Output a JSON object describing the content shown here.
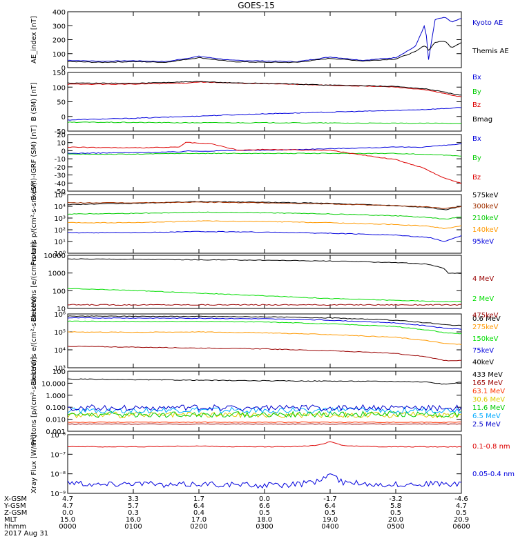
{
  "title": "GOES-15",
  "footer": {
    "rows": [
      {
        "label": "X-GSM",
        "values": [
          "4.7",
          "3.3",
          "1.7",
          "0.0",
          "-1.7",
          "-3.2",
          "-4.6"
        ]
      },
      {
        "label": "Y-GSM",
        "values": [
          "4.7",
          "5.7",
          "6.4",
          "6.6",
          "6.4",
          "5.8",
          "4.7"
        ]
      },
      {
        "label": "Z-GSM",
        "values": [
          "0.0",
          "0.3",
          "0.4",
          "0.5",
          "0.5",
          "0.5",
          "0.5"
        ]
      },
      {
        "label": "MLT",
        "values": [
          "15.0",
          "16.0",
          "17.0",
          "18.0",
          "19.0",
          "20.0",
          "20.9"
        ]
      },
      {
        "label": "hhmm",
        "values": [
          "0000",
          "0100",
          "0200",
          "0300",
          "0400",
          "0500",
          "0600"
        ]
      }
    ],
    "date": "2017 Aug 31"
  },
  "chart_data": [
    {
      "type": "line",
      "ylabel": "AE_index [nT]",
      "ylim": [
        0,
        420
      ],
      "scale": "linear",
      "yticks": [
        "0",
        "100",
        "200",
        "300",
        "400"
      ],
      "x": [
        0,
        0.5,
        1,
        1.5,
        2,
        2.5,
        3,
        3.5,
        4,
        4.5,
        5,
        5.3,
        5.45,
        5.5,
        5.6,
        5.75,
        5.85,
        6
      ],
      "series": [
        {
          "name": "Kyoto AE",
          "color": "#0000cc",
          "values": [
            55,
            48,
            52,
            45,
            85,
            55,
            50,
            45,
            80,
            55,
            75,
            160,
            330,
            60,
            360,
            380,
            340,
            370
          ]
        },
        {
          "name": "Themis AE",
          "color": "#000000",
          "values": [
            45,
            40,
            45,
            40,
            75,
            45,
            40,
            40,
            70,
            50,
            65,
            120,
            170,
            130,
            190,
            200,
            150,
            190
          ]
        }
      ]
    },
    {
      "type": "line",
      "ylabel": "B (SM) [nT]",
      "ylim": [
        -60,
        150
      ],
      "scale": "linear",
      "yticks": [
        "-50",
        "0",
        "50",
        "100",
        "150"
      ],
      "x": [
        0,
        1,
        1.8,
        2,
        2.5,
        3,
        4,
        5,
        5.5,
        6
      ],
      "series": [
        {
          "name": "Bx",
          "color": "#0000dd",
          "values": [
            -20,
            -14,
            -8,
            -6,
            -2,
            2,
            8,
            14,
            18,
            24
          ]
        },
        {
          "name": "By",
          "color": "#00cc00",
          "values": [
            -28,
            -29,
            -30,
            -30,
            -30,
            -30,
            -31,
            -32,
            -32,
            -32
          ]
        },
        {
          "name": "Bz",
          "color": "#dd0000",
          "values": [
            108,
            108,
            112,
            116,
            112,
            110,
            104,
            98,
            86,
            62
          ]
        },
        {
          "name": "Bmag",
          "color": "#000000",
          "values": [
            112,
            111,
            116,
            117,
            113,
            111,
            105,
            100,
            90,
            68
          ]
        }
      ]
    },
    {
      "type": "line",
      "ylabel": "B (SM)-IGRF (SM) [nT]",
      "ylim": [
        -50,
        22
      ],
      "scale": "linear",
      "yticks": [
        "-50",
        "-40",
        "-30",
        "-20",
        "-10",
        "0",
        "10",
        "20"
      ],
      "x": [
        0,
        1,
        1.7,
        1.8,
        2.2,
        2.6,
        3,
        4,
        4.5,
        5,
        5.4,
        5.7,
        6
      ],
      "series": [
        {
          "name": "Bx",
          "color": "#0000dd",
          "values": [
            -2,
            -1,
            0,
            1,
            1,
            2,
            2,
            4,
            5,
            6,
            6,
            8,
            10
          ]
        },
        {
          "name": "By",
          "color": "#00cc00",
          "values": [
            -3,
            -3,
            -2,
            -2,
            -2,
            -2,
            -2,
            -2,
            -2,
            -2,
            -3,
            -4,
            -5
          ]
        },
        {
          "name": "Bz",
          "color": "#dd0000",
          "values": [
            6,
            5,
            6,
            12,
            10,
            2,
            3,
            2,
            -4,
            -10,
            -20,
            -32,
            -40
          ]
        }
      ]
    },
    {
      "type": "line",
      "ylabel": "Protons p/(cm²-s-sr-keV)",
      "ylim": [
        0,
        5
      ],
      "scale": "log",
      "yticks": [
        "10⁰",
        "10¹",
        "10²",
        "10³",
        "10⁴",
        "10⁵"
      ],
      "x": [
        0,
        1,
        2,
        3,
        4,
        5,
        5.5,
        5.75,
        6
      ],
      "series": [
        {
          "name": "575keV",
          "color": "#000000",
          "values": [
            4.15,
            4.25,
            4.4,
            4.35,
            4.25,
            4.05,
            3.9,
            3.7,
            4.0
          ]
        },
        {
          "name": "300keV",
          "color": "#a03000",
          "values": [
            4.3,
            4.3,
            4.35,
            4.3,
            4.2,
            4.05,
            3.95,
            3.8,
            4.0
          ]
        },
        {
          "name": "210keV",
          "color": "#00cc00",
          "values": [
            3.35,
            3.4,
            3.5,
            3.45,
            3.35,
            3.2,
            3.05,
            2.9,
            3.1
          ]
        },
        {
          "name": "140keV",
          "color": "#ff9900",
          "values": [
            2.6,
            2.6,
            2.75,
            2.7,
            2.6,
            2.45,
            2.3,
            2.1,
            2.35
          ]
        },
        {
          "name": "95keV",
          "color": "#0000dd",
          "values": [
            1.75,
            1.75,
            1.85,
            1.8,
            1.7,
            1.55,
            1.35,
            1.0,
            1.5
          ]
        }
      ]
    },
    {
      "type": "line",
      "ylabel": "Electrons [e/(cm²-s-sr)]",
      "ylim": [
        1,
        3.95
      ],
      "scale": "log",
      "yticks": [
        "10",
        "100",
        "1000",
        "10000"
      ],
      "x": [
        0,
        1,
        2,
        3,
        4,
        5,
        5.5,
        5.75,
        5.8,
        6
      ],
      "series": [
        {
          "name": "4 MeV",
          "color": "#990000",
          "values": [
            1.2,
            1.2,
            1.2,
            1.2,
            1.2,
            1.2,
            1.2,
            1.2,
            1.2,
            1.2
          ]
        },
        {
          "name": "2 MeV",
          "color": "#00dd00",
          "values": [
            2.1,
            2.0,
            1.85,
            1.7,
            1.55,
            1.45,
            1.4,
            1.38,
            1.38,
            1.38
          ]
        },
        {
          "name": "0.6 MeV",
          "color": "#000000",
          "values": [
            3.75,
            3.73,
            3.7,
            3.68,
            3.63,
            3.55,
            3.45,
            3.2,
            2.95,
            2.95
          ]
        }
      ]
    },
    {
      "type": "line",
      "ylabel": "Electrons e/(cm²-s-sr-keV)",
      "ylim": [
        3,
        6
      ],
      "scale": "log",
      "yticks": [
        "10³",
        "10⁴",
        "10⁵",
        "10⁶"
      ],
      "x": [
        0,
        1,
        2,
        3,
        4,
        5,
        5.5,
        5.75,
        6
      ],
      "series": [
        {
          "name": "475keV",
          "color": "#990000",
          "values": [
            4.2,
            4.15,
            4.1,
            4.05,
            3.95,
            3.8,
            3.6,
            3.4,
            3.4
          ]
        },
        {
          "name": "275keV",
          "color": "#ff9900",
          "values": [
            5.0,
            4.98,
            5.0,
            4.95,
            4.85,
            4.7,
            4.5,
            4.35,
            4.3
          ]
        },
        {
          "name": "150keV",
          "color": "#00dd00",
          "values": [
            5.6,
            5.58,
            5.58,
            5.55,
            5.45,
            5.3,
            5.1,
            4.95,
            4.9
          ]
        },
        {
          "name": "75keV",
          "color": "#0000dd",
          "values": [
            5.78,
            5.77,
            5.76,
            5.73,
            5.65,
            5.5,
            5.33,
            5.2,
            5.15
          ]
        },
        {
          "name": "40keV",
          "color": "#000000",
          "values": [
            5.88,
            5.87,
            5.86,
            5.84,
            5.78,
            5.65,
            5.5,
            5.4,
            5.35
          ]
        }
      ]
    },
    {
      "type": "line",
      "ylabel": "Protons [p/(cm²-s-sr-keV)]",
      "ylim": [
        -3,
        2
      ],
      "scale": "log",
      "yticks": [
        "0.001",
        "0.010",
        "0.100",
        "1.000",
        "10.000",
        "100"
      ],
      "x": [
        0,
        1,
        2,
        3,
        4,
        5,
        5.5,
        5.75,
        6
      ],
      "series": [
        {
          "name": "433 MeV",
          "color": "#000000",
          "values": [
            1.35,
            1.3,
            1.25,
            1.2,
            1.18,
            1.15,
            1.1,
            0.9,
            1.1
          ]
        },
        {
          "name": "165 MeV",
          "color": "#990000",
          "values": [
            -2.4,
            -2.4,
            -2.4,
            -2.4,
            -2.4,
            -2.4,
            -2.4,
            -2.4,
            -2.4
          ]
        },
        {
          "name": "63.1 MeV",
          "color": "#ff3300",
          "values": [
            -2.25,
            -2.25,
            -2.25,
            -2.25,
            -2.25,
            -2.25,
            -2.25,
            -2.25,
            -2.25
          ]
        },
        {
          "name": "30.6 MeV",
          "color": "#ddcc00",
          "values": [
            -1.65,
            -1.65,
            -1.65,
            -1.65,
            -1.65,
            -1.65,
            -1.65,
            -1.65,
            -1.65
          ]
        },
        {
          "name": "11.6 MeV",
          "color": "#00cc00",
          "values": [
            -1.6,
            -1.6,
            -1.6,
            -1.6,
            -1.6,
            -1.6,
            -1.6,
            -1.6,
            -1.6
          ]
        },
        {
          "name": "6.5 MeV",
          "color": "#00aaff",
          "values": [
            -1.25,
            -1.25,
            -1.25,
            -1.25,
            -1.25,
            -1.25,
            -1.25,
            -1.25,
            -1.25
          ]
        },
        {
          "name": "2.5 MeV",
          "color": "#0000cc",
          "values": [
            -1.05,
            -1.05,
            -1.05,
            -1.05,
            -1.05,
            -1.05,
            -1.05,
            -1.05,
            -1.05
          ]
        }
      ]
    },
    {
      "type": "line",
      "ylabel": "Xray Flux [W/m²]",
      "ylim": [
        -9,
        -6
      ],
      "scale": "log",
      "yticks": [
        "10⁻⁹",
        "10⁻⁸",
        "10⁻⁷",
        "10⁻⁶"
      ],
      "x": [
        0,
        0.5,
        1,
        1.5,
        2,
        2.5,
        3,
        3.5,
        3.8,
        4,
        4.2,
        4.5,
        5,
        5.5,
        6
      ],
      "series": [
        {
          "name": "0.1-0.8 nm",
          "color": "#dd0000",
          "values": [
            -6.6,
            -6.62,
            -6.62,
            -6.6,
            -6.58,
            -6.62,
            -6.62,
            -6.6,
            -6.55,
            -6.35,
            -6.55,
            -6.6,
            -6.62,
            -6.62,
            -6.62
          ]
        },
        {
          "name": "0.05-0.4 nm",
          "color": "#0000dd",
          "values": [
            -8.4,
            -8.55,
            -8.45,
            -8.6,
            -8.5,
            -8.55,
            -8.6,
            -8.55,
            -8.4,
            -8.0,
            -8.45,
            -8.5,
            -8.55,
            -8.5,
            -8.55
          ]
        }
      ]
    }
  ]
}
